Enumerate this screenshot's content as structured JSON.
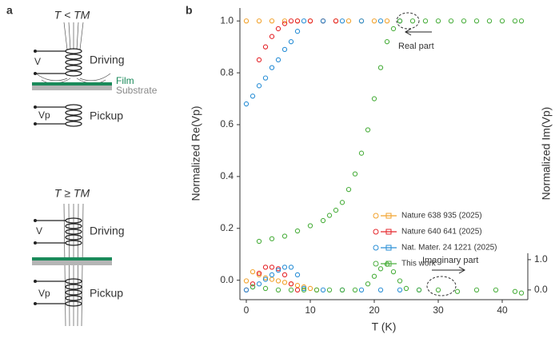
{
  "panel_labels": [
    "a",
    "b"
  ],
  "schematic": {
    "top_condition": "T < TM",
    "top_driving_voltage": "V",
    "top_driving": "Driving",
    "film": "Film",
    "substrate": "Substrate",
    "top_pickup_voltage": "Vp",
    "top_pickup": "Pickup",
    "bottom_condition": "T ≥ TM",
    "bottom_driving_voltage": "V",
    "bottom_driving": "Driving",
    "bottom_pickup_voltage": "Vp",
    "bottom_pickup": "Pickup"
  },
  "chart_data": {
    "type": "scatter",
    "xlabel": "T (K)",
    "ylabel": "Normalized Re(Vp)",
    "y2label": "Normalized Im(Vp)",
    "annotations": [
      "Real part",
      "Imaginary part"
    ],
    "xlim": [
      -1,
      44
    ],
    "xticks": [
      0,
      10,
      20,
      30,
      40
    ],
    "ylim": [
      -0.075,
      1.05
    ],
    "yticks": [
      {
        "value": 0,
        "label": "0.0"
      },
      {
        "value": 0.2,
        "label": "0.2"
      },
      {
        "value": 0.4,
        "label": "0.4"
      },
      {
        "value": 0.6,
        "label": "0.6"
      },
      {
        "value": 0.8,
        "label": "0.8"
      },
      {
        "value": 1,
        "label": "1.0"
      }
    ],
    "y2lim": [
      -0.32,
      9.3
    ],
    "y2ticks": [
      {
        "value": 0,
        "label": "0.0"
      },
      {
        "value": 1,
        "label": "1.0"
      }
    ],
    "legend": "right",
    "series": [
      {
        "name": "Nature 638 935 (2025)",
        "color": "#f2a22c",
        "x": [
          0,
          2,
          4,
          6,
          8,
          10,
          12,
          14,
          16,
          18,
          20,
          22,
          24
        ],
        "values": [
          1,
          1,
          1,
          1,
          1,
          1,
          1,
          1,
          1,
          1,
          1,
          1,
          1
        ],
        "imaginary": {
          "x": [
            0,
            1,
            2,
            3,
            4,
            5,
            6,
            7,
            8,
            9,
            10,
            11
          ],
          "values": [
            0.3,
            0.6,
            0.5,
            0.4,
            0.35,
            0.3,
            0.25,
            0.2,
            0.15,
            0.1,
            0.05,
            0
          ]
        }
      },
      {
        "name": "Nature 640 641 (2025)",
        "color": "#e5262b",
        "x": [
          2,
          3,
          4,
          5,
          6,
          7,
          8,
          10,
          12,
          14
        ],
        "values": [
          0.85,
          0.9,
          0.94,
          0.97,
          0.99,
          1,
          1,
          1,
          1,
          1
        ],
        "imaginary": {
          "x": [
            0,
            1,
            2,
            3,
            4,
            5,
            6,
            7,
            8
          ],
          "values": [
            0,
            0.2,
            0.55,
            0.75,
            0.75,
            0.7,
            0.5,
            0.2,
            0
          ]
        }
      },
      {
        "name": "Nat. Mater. 24 1221 (2025)",
        "color": "#2a8fd6",
        "x": [
          0,
          1,
          2,
          3,
          4,
          5,
          6,
          7,
          8,
          9,
          12,
          15,
          18,
          21,
          24
        ],
        "values": [
          0.68,
          0.71,
          0.75,
          0.78,
          0.82,
          0.85,
          0.89,
          0.92,
          0.96,
          1,
          1,
          1,
          1,
          1,
          1
        ],
        "imaginary": {
          "x": [
            0,
            1,
            2,
            3,
            4,
            5,
            6,
            7,
            8,
            9,
            12,
            15,
            18,
            21,
            24,
            27
          ],
          "values": [
            0,
            0.1,
            0.2,
            0.35,
            0.5,
            0.65,
            0.75,
            0.75,
            0.5,
            0.05,
            0,
            0,
            0,
            0,
            0,
            0
          ]
        }
      },
      {
        "name": "This work",
        "color": "#4caf3f",
        "x": [
          2,
          4,
          6,
          8,
          10,
          12,
          13,
          14,
          15,
          16,
          17,
          18,
          19,
          20,
          21,
          22,
          23,
          24,
          26,
          28,
          30,
          32,
          34,
          36,
          38,
          40,
          42,
          43
        ],
        "values": [
          0.15,
          0.16,
          0.17,
          0.19,
          0.21,
          0.23,
          0.25,
          0.27,
          0.3,
          0.35,
          0.41,
          0.49,
          0.58,
          0.7,
          0.82,
          0.92,
          0.97,
          1,
          1,
          1,
          1,
          1,
          1,
          1,
          1,
          1,
          1,
          1
        ],
        "imaginary": {
          "x": [
            1,
            3,
            5,
            7,
            9,
            11,
            13,
            15,
            17,
            19,
            20,
            21,
            22,
            23,
            24,
            25,
            27,
            30,
            33,
            36,
            39,
            42,
            43
          ],
          "values": [
            0.1,
            0.05,
            0,
            0,
            0,
            0,
            0,
            0,
            0,
            0.2,
            0.45,
            0.7,
            0.85,
            0.6,
            0.3,
            0.05,
            0,
            0,
            -0.05,
            0,
            0,
            -0.05,
            -0.1
          ]
        }
      }
    ]
  }
}
